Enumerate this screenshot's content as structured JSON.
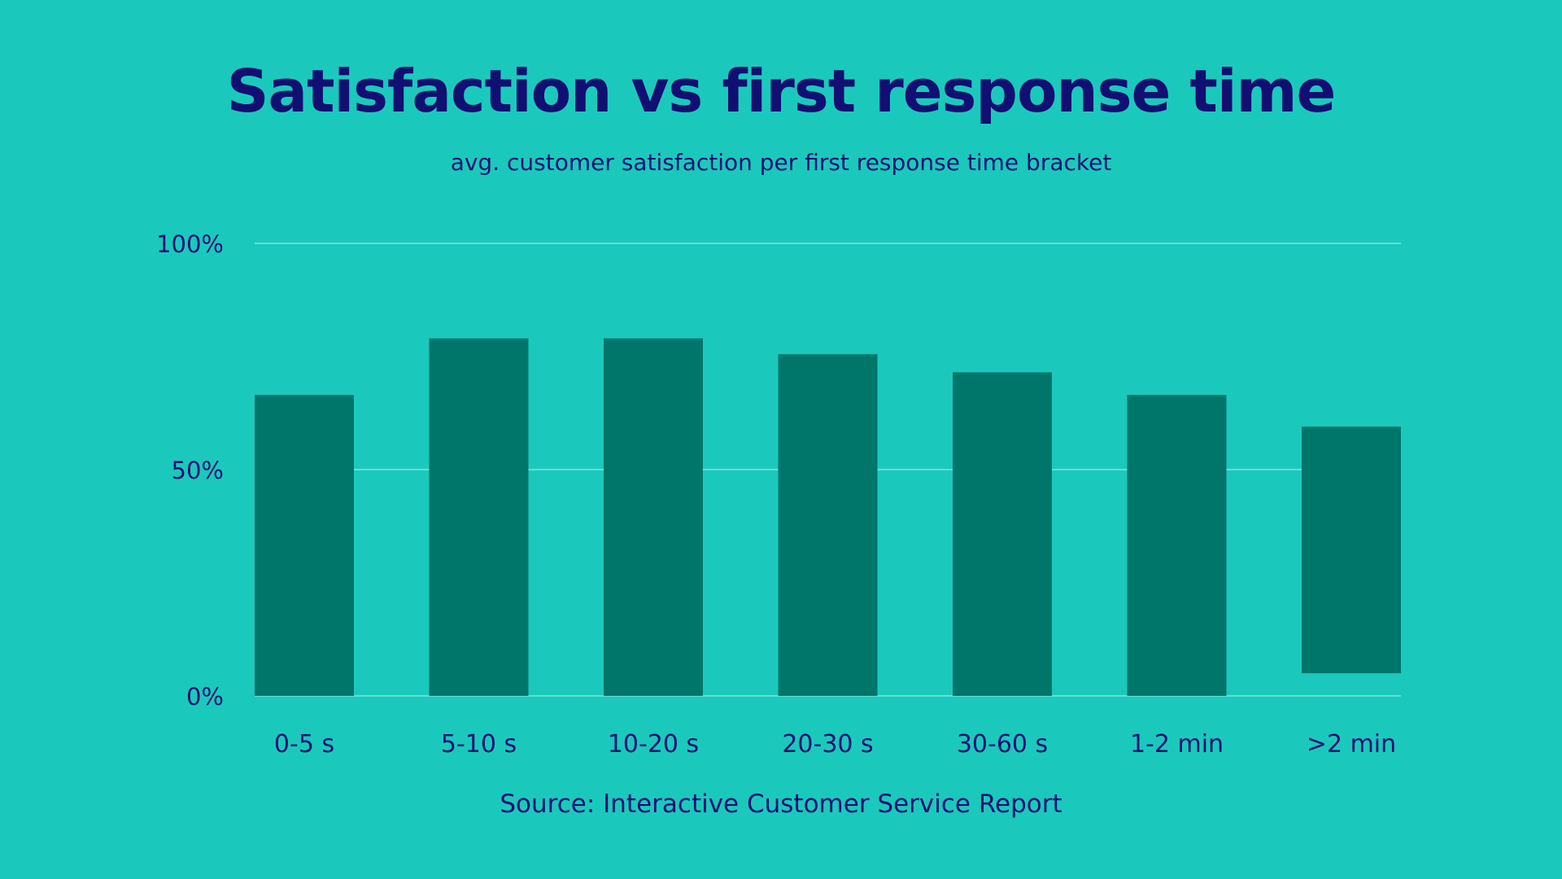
{
  "colors": {
    "background": "#1bc9bc",
    "bar": "#00756a",
    "grid": "#7fe6dd",
    "text": "#120f73"
  },
  "chart_data": {
    "type": "bar",
    "title": "Satisfaction vs first response time",
    "subtitle": "avg. customer satisfaction per first response time bracket",
    "source": "Source: Interactive Customer Service Report",
    "xlabel": "",
    "ylabel": "",
    "categories": [
      "0-5 s",
      "5-10 s",
      "10-20 s",
      "20-30 s",
      "30-60 s",
      "1-2 min",
      ">2 min"
    ],
    "values": [
      66.5,
      79,
      79,
      75.5,
      71.5,
      66.5,
      59.5
    ],
    "bar_bases": [
      0,
      0,
      0,
      0,
      0,
      0,
      5
    ],
    "ylim": [
      0,
      100
    ],
    "yticks": [
      0,
      50,
      100
    ],
    "ytick_labels": [
      "0%",
      "50%",
      "100%"
    ],
    "grid": true,
    "legend": "none"
  }
}
